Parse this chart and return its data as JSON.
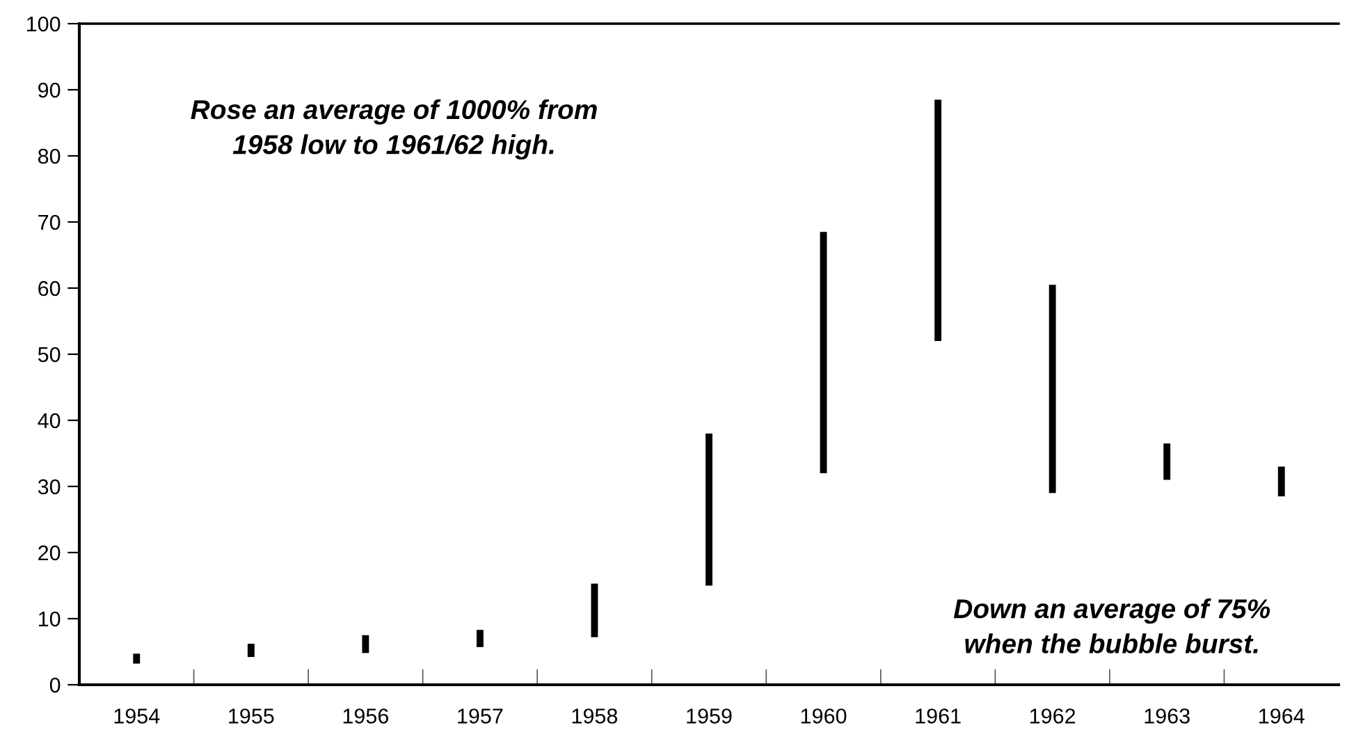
{
  "chart_data": {
    "type": "bar",
    "categories": [
      "1954",
      "1955",
      "1956",
      "1957",
      "1958",
      "1959",
      "1960",
      "1961",
      "1962",
      "1963",
      "1964"
    ],
    "base": [
      3.2,
      4.2,
      4.8,
      5.7,
      7.2,
      15,
      32,
      52,
      29,
      31,
      28.5
    ],
    "values": [
      1.5,
      2,
      2.7,
      2.6,
      8.1,
      23,
      36.5,
      36.5,
      31.5,
      5.5,
      4.5
    ],
    "color": "#000000",
    "ylim": [
      0,
      100
    ],
    "yticks": [
      0,
      10,
      20,
      30,
      40,
      50,
      60,
      70,
      80,
      90,
      100
    ],
    "grid": false,
    "legend": false,
    "annotations": [
      "Rose an average of 1000% from\n1958 low to 1961/62 high.",
      "Down an average of 75%\nwhen the bubble burst."
    ]
  }
}
